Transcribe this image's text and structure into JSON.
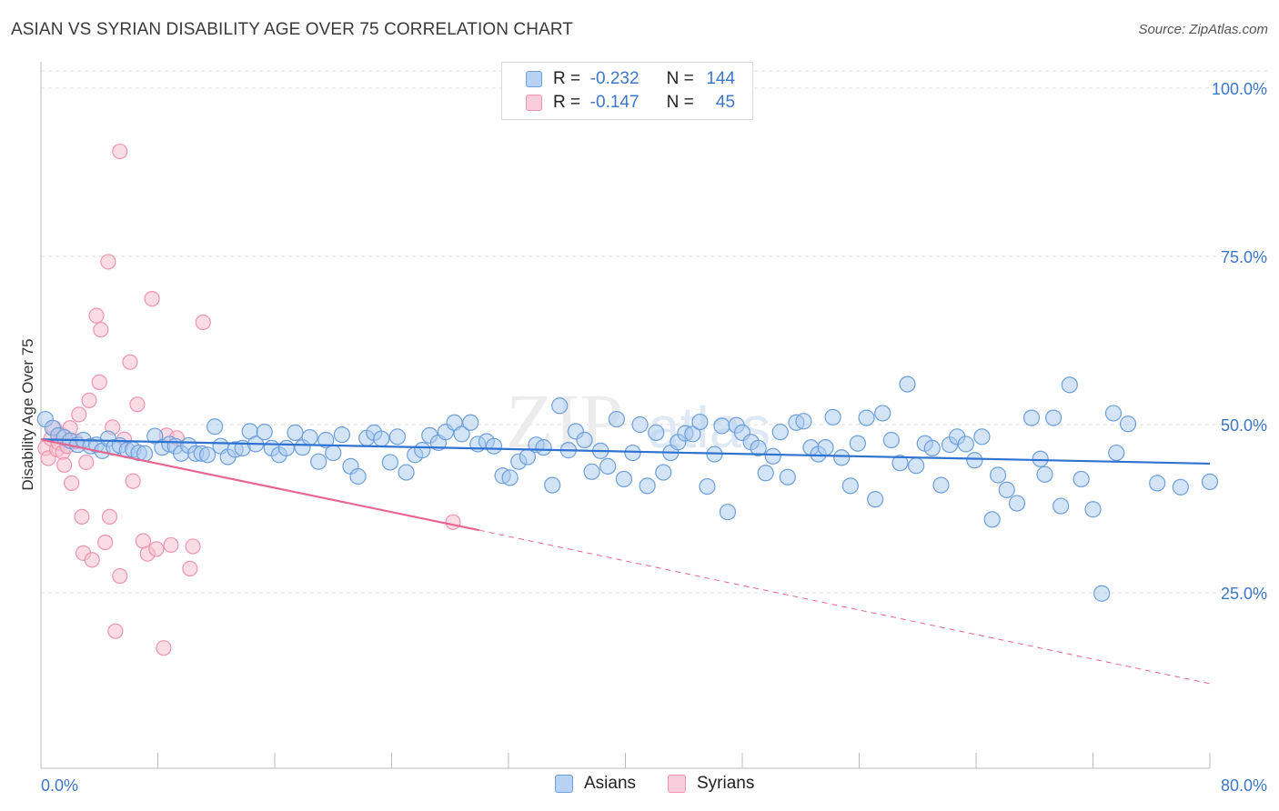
{
  "header": {
    "title": "ASIAN VS SYRIAN DISABILITY AGE OVER 75 CORRELATION CHART",
    "source": "Source: ZipAtlas.com"
  },
  "legend": {
    "r_label": "R =",
    "n_label": "N =",
    "asians": {
      "r": "-0.232",
      "n": "144"
    },
    "syrians": {
      "r": "-0.147",
      "n": "45"
    }
  },
  "bottom_legend": {
    "asians": "Asians",
    "syrians": "Syrians"
  },
  "watermark": {
    "zip": "ZIP",
    "atlas": "atlas"
  },
  "colors": {
    "asian_fill": "#a9c9ef",
    "asian_stroke": "#6c9fdb",
    "asian_line": "#2f73d1",
    "syrian_fill": "#f6bfd0",
    "syrian_stroke": "#ee94b2",
    "syrian_line": "#e56792",
    "grid": "#dcdcdc",
    "axis_label": "#3d77c9"
  },
  "chart_data": {
    "type": "scatter",
    "title": "ASIAN VS SYRIAN DISABILITY AGE OVER 75 CORRELATION CHART",
    "xlabel": "",
    "ylabel": "Disability Age Over 75",
    "xlim": [
      0,
      80
    ],
    "ylim": [
      0,
      105
    ],
    "x_tick_labels": [
      "0.0%",
      "80.0%"
    ],
    "y_ticks": [
      25,
      50,
      75,
      100
    ],
    "y_tick_labels": [
      "25.0%",
      "50.0%",
      "75.0%",
      "100.0%"
    ],
    "grid": true,
    "legend_position": "top-center",
    "series": [
      {
        "name": "Asians",
        "r": -0.232,
        "n": 144,
        "trend": {
          "x": [
            0,
            80
          ],
          "y": [
            47.8,
            44.2
          ]
        },
        "points": [
          [
            0.3,
            50.8
          ],
          [
            0.8,
            49.5
          ],
          [
            1.2,
            48.4
          ],
          [
            1.6,
            48.1
          ],
          [
            2.0,
            47.6
          ],
          [
            2.5,
            47.0
          ],
          [
            2.9,
            47.7
          ],
          [
            3.4,
            46.8
          ],
          [
            3.8,
            47.0
          ],
          [
            4.2,
            46.1
          ],
          [
            4.6,
            47.9
          ],
          [
            5.0,
            46.6
          ],
          [
            5.4,
            46.9
          ],
          [
            5.9,
            46.2
          ],
          [
            6.3,
            46.3
          ],
          [
            6.7,
            45.8
          ],
          [
            7.1,
            45.7
          ],
          [
            7.8,
            48.3
          ],
          [
            8.3,
            46.6
          ],
          [
            8.8,
            47.1
          ],
          [
            9.2,
            46.8
          ],
          [
            9.6,
            45.7
          ],
          [
            10.1,
            46.9
          ],
          [
            10.6,
            45.7
          ],
          [
            11.0,
            45.7
          ],
          [
            11.4,
            45.5
          ],
          [
            11.9,
            49.7
          ],
          [
            12.3,
            46.8
          ],
          [
            12.8,
            45.2
          ],
          [
            13.3,
            46.3
          ],
          [
            13.8,
            46.5
          ],
          [
            14.3,
            49.0
          ],
          [
            14.7,
            47.1
          ],
          [
            15.3,
            48.9
          ],
          [
            15.8,
            46.5
          ],
          [
            16.3,
            45.5
          ],
          [
            16.8,
            46.5
          ],
          [
            17.4,
            48.8
          ],
          [
            17.9,
            46.6
          ],
          [
            18.4,
            48.1
          ],
          [
            19.0,
            44.5
          ],
          [
            19.5,
            47.7
          ],
          [
            20.0,
            45.8
          ],
          [
            20.6,
            48.5
          ],
          [
            21.2,
            43.8
          ],
          [
            21.7,
            42.3
          ],
          [
            22.3,
            48.0
          ],
          [
            22.8,
            48.8
          ],
          [
            23.3,
            47.9
          ],
          [
            23.9,
            44.4
          ],
          [
            24.4,
            48.2
          ],
          [
            25.0,
            42.9
          ],
          [
            25.6,
            45.5
          ],
          [
            26.1,
            46.2
          ],
          [
            26.6,
            48.4
          ],
          [
            27.2,
            47.3
          ],
          [
            27.7,
            48.9
          ],
          [
            28.3,
            50.3
          ],
          [
            28.8,
            48.6
          ],
          [
            29.4,
            50.3
          ],
          [
            29.9,
            47.1
          ],
          [
            30.5,
            47.5
          ],
          [
            31.0,
            46.8
          ],
          [
            31.6,
            42.4
          ],
          [
            32.1,
            42.1
          ],
          [
            32.7,
            44.5
          ],
          [
            33.3,
            45.2
          ],
          [
            33.9,
            47.0
          ],
          [
            34.4,
            46.6
          ],
          [
            35.0,
            41.0
          ],
          [
            35.5,
            52.8
          ],
          [
            36.1,
            46.2
          ],
          [
            36.6,
            49.0
          ],
          [
            37.2,
            47.7
          ],
          [
            37.7,
            43.0
          ],
          [
            38.3,
            46.1
          ],
          [
            38.8,
            43.8
          ],
          [
            39.4,
            50.8
          ],
          [
            39.9,
            41.9
          ],
          [
            40.5,
            45.8
          ],
          [
            41.0,
            50.0
          ],
          [
            41.5,
            40.9
          ],
          [
            42.1,
            48.8
          ],
          [
            42.6,
            42.9
          ],
          [
            43.1,
            45.8
          ],
          [
            43.6,
            47.4
          ],
          [
            44.1,
            48.7
          ],
          [
            44.6,
            48.6
          ],
          [
            45.1,
            50.4
          ],
          [
            45.6,
            40.8
          ],
          [
            46.1,
            45.6
          ],
          [
            46.6,
            49.8
          ],
          [
            47.0,
            37.0
          ],
          [
            47.6,
            49.9
          ],
          [
            48.0,
            48.8
          ],
          [
            48.6,
            47.4
          ],
          [
            49.1,
            46.5
          ],
          [
            49.6,
            42.8
          ],
          [
            50.1,
            45.3
          ],
          [
            50.6,
            48.9
          ],
          [
            51.1,
            42.2
          ],
          [
            51.7,
            50.3
          ],
          [
            52.2,
            50.5
          ],
          [
            52.7,
            46.6
          ],
          [
            53.2,
            45.6
          ],
          [
            53.7,
            46.6
          ],
          [
            54.2,
            51.1
          ],
          [
            54.8,
            45.1
          ],
          [
            55.4,
            40.9
          ],
          [
            55.9,
            47.2
          ],
          [
            56.5,
            51.0
          ],
          [
            57.1,
            38.9
          ],
          [
            57.6,
            51.7
          ],
          [
            58.2,
            47.7
          ],
          [
            58.8,
            44.3
          ],
          [
            59.3,
            56.0
          ],
          [
            59.9,
            43.9
          ],
          [
            60.5,
            47.2
          ],
          [
            61.0,
            46.5
          ],
          [
            61.6,
            41.0
          ],
          [
            62.2,
            47.0
          ],
          [
            62.7,
            48.2
          ],
          [
            63.3,
            47.1
          ],
          [
            63.9,
            44.7
          ],
          [
            64.4,
            48.2
          ],
          [
            65.1,
            35.9
          ],
          [
            65.5,
            42.5
          ],
          [
            66.1,
            40.3
          ],
          [
            66.8,
            38.3
          ],
          [
            67.8,
            51.0
          ],
          [
            68.4,
            44.9
          ],
          [
            68.7,
            42.6
          ],
          [
            69.3,
            51.0
          ],
          [
            69.8,
            37.9
          ],
          [
            70.4,
            55.9
          ],
          [
            71.2,
            41.9
          ],
          [
            72.0,
            37.4
          ],
          [
            72.6,
            24.9
          ],
          [
            73.4,
            51.7
          ],
          [
            73.6,
            45.8
          ],
          [
            74.4,
            50.1
          ],
          [
            76.4,
            41.3
          ],
          [
            78.0,
            40.7
          ],
          [
            80.0,
            41.5
          ]
        ]
      },
      {
        "name": "Syrians",
        "r": -0.147,
        "n": 45,
        "trend": {
          "x": [
            0,
            30
          ],
          "y": [
            47.8,
            34.3
          ]
        },
        "trend_dashed": {
          "x": [
            30,
            80
          ],
          "y": [
            34.3,
            11.5
          ]
        },
        "points": [
          [
            0.3,
            46.5
          ],
          [
            0.5,
            45.0
          ],
          [
            0.7,
            47.9
          ],
          [
            0.9,
            49.5
          ],
          [
            1.1,
            46.3
          ],
          [
            1.2,
            47.3
          ],
          [
            1.4,
            48.5
          ],
          [
            1.5,
            45.9
          ],
          [
            1.6,
            44.0
          ],
          [
            1.8,
            46.8
          ],
          [
            2.0,
            49.5
          ],
          [
            2.1,
            41.3
          ],
          [
            2.4,
            47.5
          ],
          [
            2.6,
            51.5
          ],
          [
            2.8,
            36.3
          ],
          [
            2.9,
            30.9
          ],
          [
            3.1,
            44.4
          ],
          [
            3.3,
            53.6
          ],
          [
            3.5,
            29.9
          ],
          [
            3.8,
            66.2
          ],
          [
            4.0,
            56.3
          ],
          [
            4.1,
            64.1
          ],
          [
            4.4,
            32.5
          ],
          [
            4.6,
            74.2
          ],
          [
            4.7,
            36.3
          ],
          [
            4.9,
            49.6
          ],
          [
            5.1,
            19.3
          ],
          [
            5.4,
            27.5
          ],
          [
            5.4,
            90.6
          ],
          [
            5.7,
            47.8
          ],
          [
            6.1,
            59.3
          ],
          [
            6.3,
            41.6
          ],
          [
            6.6,
            53.0
          ],
          [
            7.0,
            32.7
          ],
          [
            7.3,
            30.8
          ],
          [
            7.6,
            68.7
          ],
          [
            7.9,
            31.5
          ],
          [
            8.4,
            16.8
          ],
          [
            8.6,
            48.4
          ],
          [
            8.9,
            32.1
          ],
          [
            9.3,
            48.0
          ],
          [
            10.2,
            28.6
          ],
          [
            10.4,
            31.9
          ],
          [
            11.1,
            65.2
          ],
          [
            28.2,
            35.5
          ]
        ]
      }
    ]
  }
}
